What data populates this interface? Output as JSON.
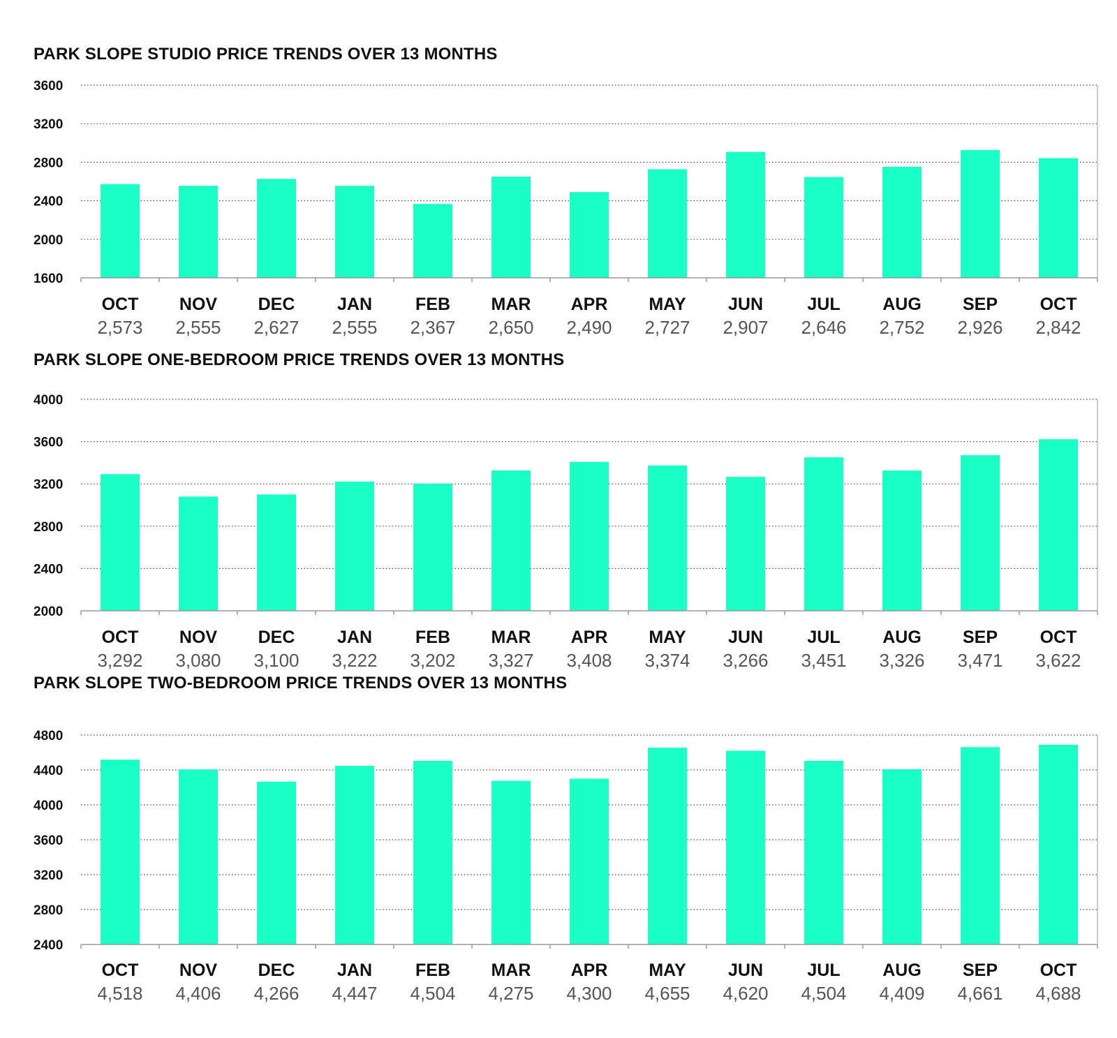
{
  "colors": {
    "bar": "#1affc6",
    "grid": "#444444",
    "axis": "#999999",
    "text": "#111111",
    "value_text": "#555555"
  },
  "chart_data": [
    {
      "type": "bar",
      "title": "PARK SLOPE STUDIO PRICE TRENDS OVER 13 MONTHS",
      "categories": [
        "OCT",
        "NOV",
        "DEC",
        "JAN",
        "FEB",
        "MAR",
        "APR",
        "MAY",
        "JUN",
        "JUL",
        "AUG",
        "SEP",
        "OCT"
      ],
      "values": [
        2573,
        2555,
        2627,
        2555,
        2367,
        2650,
        2490,
        2727,
        2907,
        2646,
        2752,
        2926,
        2842
      ],
      "value_labels": [
        "2,573",
        "2,555",
        "2,627",
        "2,555",
        "2,367",
        "2,650",
        "2,490",
        "2,727",
        "2,907",
        "2,646",
        "2,752",
        "2,926",
        "2,842"
      ],
      "yticks": [
        1600,
        2000,
        2400,
        2800,
        3200,
        3600
      ],
      "ylim": [
        1600,
        3600
      ],
      "grid": true
    },
    {
      "type": "bar",
      "title": "PARK SLOPE ONE-BEDROOM PRICE TRENDS OVER 13 MONTHS",
      "categories": [
        "OCT",
        "NOV",
        "DEC",
        "JAN",
        "FEB",
        "MAR",
        "APR",
        "MAY",
        "JUN",
        "JUL",
        "AUG",
        "SEP",
        "OCT"
      ],
      "values": [
        3292,
        3080,
        3100,
        3222,
        3202,
        3327,
        3408,
        3374,
        3266,
        3451,
        3326,
        3471,
        3622
      ],
      "value_labels": [
        "3,292",
        "3,080",
        "3,100",
        "3,222",
        "3,202",
        "3,327",
        "3,408",
        "3,374",
        "3,266",
        "3,451",
        "3,326",
        "3,471",
        "3,622"
      ],
      "yticks": [
        2000,
        2400,
        2800,
        3200,
        3600,
        4000
      ],
      "ylim": [
        2000,
        4000
      ],
      "grid": true
    },
    {
      "type": "bar",
      "title": "PARK SLOPE TWO-BEDROOM PRICE TRENDS OVER 13 MONTHS",
      "categories": [
        "OCT",
        "NOV",
        "DEC",
        "JAN",
        "FEB",
        "MAR",
        "APR",
        "MAY",
        "JUN",
        "JUL",
        "AUG",
        "SEP",
        "OCT"
      ],
      "values": [
        4518,
        4406,
        4266,
        4447,
        4504,
        4275,
        4300,
        4655,
        4620,
        4504,
        4409,
        4661,
        4688
      ],
      "value_labels": [
        "4,518",
        "4,406",
        "4,266",
        "4,447",
        "4,504",
        "4,275",
        "4,300",
        "4,655",
        "4,620",
        "4,504",
        "4,409",
        "4,661",
        "4,688"
      ],
      "yticks": [
        2400,
        2800,
        3200,
        3600,
        4000,
        4400,
        4800
      ],
      "ylim": [
        2400,
        4800
      ],
      "grid": true
    }
  ]
}
